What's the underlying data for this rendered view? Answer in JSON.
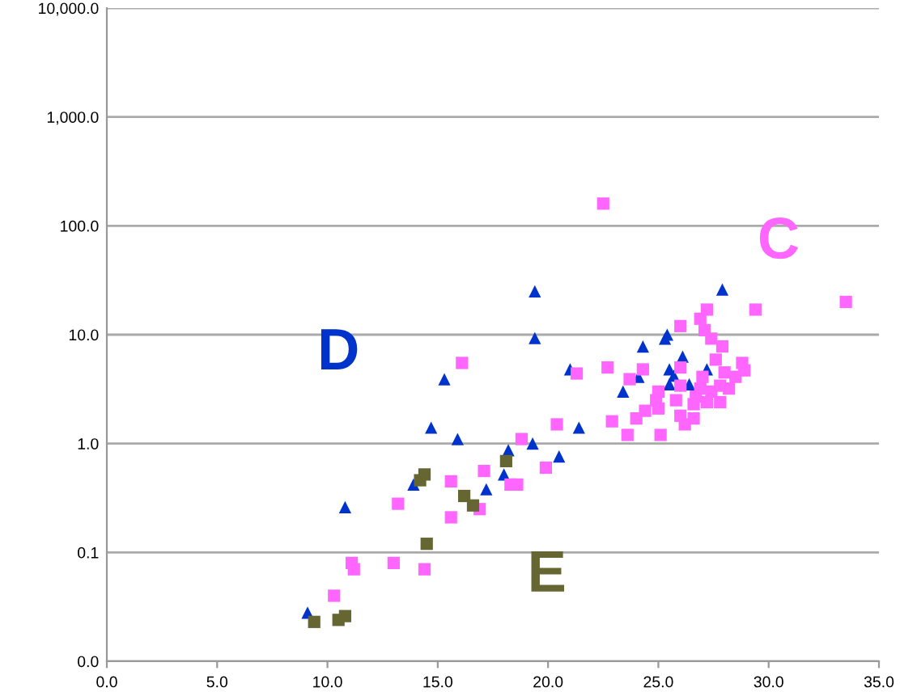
{
  "chart_data": {
    "type": "scatter",
    "log": "y",
    "grid": "y",
    "xlim": [
      0,
      35
    ],
    "xticks": [
      {
        "value": 0,
        "label": "0.0"
      },
      {
        "value": 5,
        "label": "5.0"
      },
      {
        "value": 10,
        "label": "10.0"
      },
      {
        "value": 15,
        "label": "15.0"
      },
      {
        "value": 20,
        "label": "20.0"
      },
      {
        "value": 25,
        "label": "25.0"
      },
      {
        "value": 30,
        "label": "30.0"
      },
      {
        "value": 35,
        "label": "35.0"
      }
    ],
    "ylim": [
      0.01,
      10000
    ],
    "yticks": [
      {
        "value": 0.01,
        "label": "0.0"
      },
      {
        "value": 0.1,
        "label": "0.1"
      },
      {
        "value": 1,
        "label": "1.0"
      },
      {
        "value": 10,
        "label": "10.0"
      },
      {
        "value": 100,
        "label": "100.0"
      },
      {
        "value": 1000,
        "label": "1,000.0"
      },
      {
        "value": 10000,
        "label": "10,000.0"
      }
    ],
    "series": [
      {
        "name": "D",
        "color": "#0033cc",
        "marker": "triangle",
        "x": [
          9.1,
          10.8,
          13.9,
          14.7,
          15.3,
          15.9,
          18.2,
          18.0,
          17.2,
          19.4,
          19.4,
          19.3,
          20.5,
          21.0,
          21.4,
          27.9,
          24.3,
          25.4,
          25.3,
          26.1,
          25.5,
          24.1,
          27.2,
          25.7,
          25.5,
          26.4,
          23.4
        ],
        "values": [
          0.028,
          0.26,
          0.42,
          1.4,
          3.9,
          1.1,
          0.87,
          0.52,
          0.38,
          25,
          9.3,
          1.0,
          0.76,
          4.8,
          1.4,
          26,
          7.8,
          10,
          9.2,
          6.3,
          4.8,
          4.1,
          4.8,
          4.2,
          3.5,
          3.5,
          3.0
        ]
      },
      {
        "name": "C",
        "color": "#ff66ff",
        "marker": "square",
        "x": [
          10.3,
          11.1,
          11.2,
          13.0,
          14.4,
          13.2,
          15.6,
          15.6,
          17.1,
          16.9,
          18.3,
          18.6,
          19.9,
          22.5,
          16.1,
          21.3,
          22.7,
          20.4,
          22.9,
          18.8,
          33.5,
          29.4,
          27.2,
          26.9,
          26.0,
          27.1,
          27.4,
          27.9,
          27.6,
          28.8,
          28.9,
          23.7,
          24.3,
          26.0,
          28.5,
          28.0,
          27.0,
          27.8,
          28.2,
          26.9,
          27.4,
          26.0,
          25.0,
          24.9,
          25.8,
          26.7,
          27.8,
          27.2,
          25.0,
          24.4,
          24.0,
          26.6,
          26.6,
          26.0,
          26.2,
          23.6,
          25.1
        ],
        "values": [
          0.04,
          0.08,
          0.07,
          0.08,
          0.07,
          0.28,
          0.21,
          0.45,
          0.56,
          0.25,
          0.42,
          0.42,
          0.6,
          160,
          5.5,
          4.4,
          5.0,
          1.5,
          1.6,
          1.1,
          20,
          17,
          17,
          14,
          12,
          11,
          9.2,
          7.8,
          5.9,
          5.5,
          4.7,
          3.9,
          4.8,
          5.0,
          4.1,
          4.5,
          4.1,
          3.4,
          3.2,
          3.2,
          3.0,
          3.4,
          3.0,
          2.5,
          2.5,
          2.7,
          2.4,
          2.4,
          2.1,
          2.0,
          1.7,
          2.3,
          1.7,
          1.8,
          1.5,
          1.2,
          1.2
        ]
      },
      {
        "name": "E",
        "color": "#666633",
        "marker": "square",
        "x": [
          9.4,
          10.5,
          10.8,
          14.5,
          14.2,
          14.4,
          16.2,
          16.6,
          18.1
        ],
        "values": [
          0.023,
          0.024,
          0.026,
          0.12,
          0.46,
          0.52,
          0.33,
          0.27,
          0.69
        ]
      }
    ]
  }
}
